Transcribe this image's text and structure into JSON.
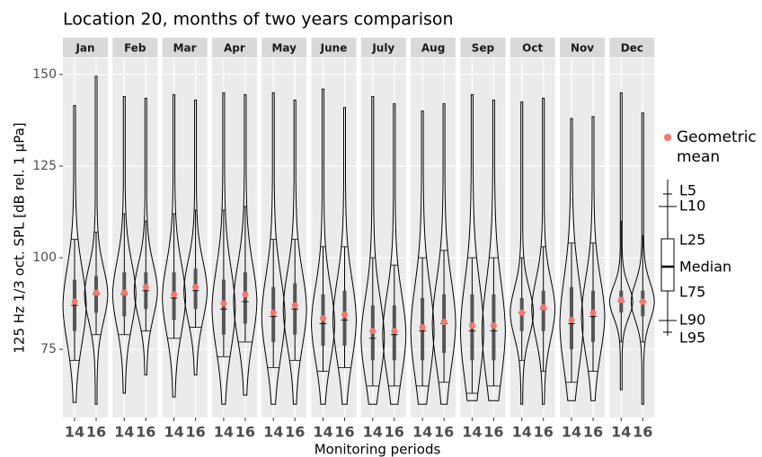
{
  "chart_data": {
    "type": "violin",
    "title": "Location 20, months of two years comparison",
    "x_label": "Monitoring periods",
    "y_label": "125 Hz 1/3 oct. SPL [dB rel. 1 µPa]",
    "ylim": [
      56.4,
      154.4
    ],
    "yticks": [
      75,
      100,
      125,
      150
    ],
    "grid": true,
    "violin_color": "#000000",
    "mean_color": "#f8766d",
    "panel_color": "#ebebeb",
    "strip_color": "#d9d9d9",
    "legend": {
      "mean_label": "Geometric mean",
      "box_labels": [
        "L5",
        "L10",
        "L25",
        "Median",
        "L75",
        "L90",
        "L95"
      ]
    },
    "facets": [
      {
        "label": "Jan",
        "groups": [
          {
            "name": "14",
            "min": 60.5,
            "max": 141.5,
            "mean": 88,
            "l10": 105,
            "l25": 94,
            "median": 87,
            "l75": 80,
            "l90": 72
          },
          {
            "name": "16",
            "min": 60,
            "max": 149.5,
            "mean": 90.5,
            "l10": 107,
            "l25": 95,
            "median": 90,
            "l75": 85,
            "l90": 79
          }
        ]
      },
      {
        "label": "Feb",
        "groups": [
          {
            "name": "14",
            "min": 63,
            "max": 144,
            "mean": 90.5,
            "l10": 112,
            "l25": 96,
            "median": 90,
            "l75": 84,
            "l90": 79
          },
          {
            "name": "16",
            "min": 68,
            "max": 143.5,
            "mean": 92,
            "l10": 110,
            "l25": 96,
            "median": 91,
            "l75": 86,
            "l90": 80
          }
        ]
      },
      {
        "label": "Mar",
        "groups": [
          {
            "name": "14",
            "min": 62,
            "max": 144.5,
            "mean": 90,
            "l10": 112,
            "l25": 96,
            "median": 89,
            "l75": 83,
            "l90": 78
          },
          {
            "name": "16",
            "min": 68,
            "max": 143,
            "mean": 92,
            "l10": 113,
            "l25": 97,
            "median": 91,
            "l75": 86,
            "l90": 81
          }
        ]
      },
      {
        "label": "Apr",
        "groups": [
          {
            "name": "14",
            "min": 60,
            "max": 145,
            "mean": 87.5,
            "l10": 113,
            "l25": 94,
            "median": 86,
            "l75": 79,
            "l90": 73
          },
          {
            "name": "16",
            "min": 62.5,
            "max": 144.5,
            "mean": 90,
            "l10": 114,
            "l25": 96,
            "median": 88,
            "l75": 82,
            "l90": 77
          }
        ]
      },
      {
        "label": "May",
        "groups": [
          {
            "name": "14",
            "min": 60,
            "max": 145,
            "mean": 85,
            "l10": 105,
            "l25": 92,
            "median": 84,
            "l75": 77,
            "l90": 70
          },
          {
            "name": "16",
            "min": 60,
            "max": 143,
            "mean": 87,
            "l10": 105,
            "l25": 93,
            "median": 86,
            "l75": 79,
            "l90": 72
          }
        ]
      },
      {
        "label": "June",
        "groups": [
          {
            "name": "14",
            "min": 60,
            "max": 146,
            "mean": 83.5,
            "l10": 103,
            "l25": 90,
            "median": 82,
            "l75": 76,
            "l90": 69
          },
          {
            "name": "16",
            "min": 60,
            "max": 141,
            "mean": 84.5,
            "l10": 103,
            "l25": 91,
            "median": 83,
            "l75": 76,
            "l90": 70
          }
        ]
      },
      {
        "label": "July",
        "groups": [
          {
            "name": "14",
            "min": 60,
            "max": 144,
            "mean": 80,
            "l10": 100,
            "l25": 87,
            "median": 78,
            "l75": 72,
            "l90": 65
          },
          {
            "name": "16",
            "min": 60,
            "max": 142,
            "mean": 80,
            "l10": 98,
            "l25": 87,
            "median": 79,
            "l75": 72,
            "l90": 65
          }
        ]
      },
      {
        "label": "Aug",
        "groups": [
          {
            "name": "14",
            "min": 60,
            "max": 140,
            "mean": 81,
            "l10": 100,
            "l25": 89,
            "median": 80,
            "l75": 72,
            "l90": 65
          },
          {
            "name": "16",
            "min": 60,
            "max": 142,
            "mean": 82.5,
            "l10": 102,
            "l25": 90,
            "median": 82,
            "l75": 74,
            "l90": 66
          }
        ]
      },
      {
        "label": "Sep",
        "groups": [
          {
            "name": "14",
            "min": 61,
            "max": 144.5,
            "mean": 81.5,
            "l10": 100,
            "l25": 90,
            "median": 80,
            "l75": 72,
            "l90": 63
          },
          {
            "name": "16",
            "min": 61,
            "max": 143,
            "mean": 81.5,
            "l10": 100,
            "l25": 90,
            "median": 80,
            "l75": 72,
            "l90": 65
          }
        ]
      },
      {
        "label": "Oct",
        "groups": [
          {
            "name": "14",
            "min": 60,
            "max": 142.5,
            "mean": 85,
            "l10": 100,
            "l25": 89,
            "median": 85,
            "l75": 80,
            "l90": 72
          },
          {
            "name": "16",
            "min": 60,
            "max": 143.5,
            "mean": 86.5,
            "l10": 103,
            "l25": 91,
            "median": 86,
            "l75": 80,
            "l90": 69
          }
        ]
      },
      {
        "label": "Nov",
        "groups": [
          {
            "name": "14",
            "min": 61,
            "max": 138,
            "mean": 83,
            "l10": 104,
            "l25": 92,
            "median": 82,
            "l75": 75,
            "l90": 66
          },
          {
            "name": "16",
            "min": 61,
            "max": 138.5,
            "mean": 85,
            "l10": 104,
            "l25": 91,
            "median": 84,
            "l75": 77,
            "l90": 69
          }
        ]
      },
      {
        "label": "Dec",
        "groups": [
          {
            "name": "14",
            "min": 64,
            "max": 145,
            "mean": 88.5,
            "l10": 110,
            "l25": 91,
            "median": 88,
            "l75": 85,
            "l90": 77
          },
          {
            "name": "16",
            "min": 60,
            "max": 139.5,
            "mean": 88,
            "l10": 106,
            "l25": 91,
            "median": 88,
            "l75": 84,
            "l90": 77
          }
        ]
      }
    ]
  }
}
